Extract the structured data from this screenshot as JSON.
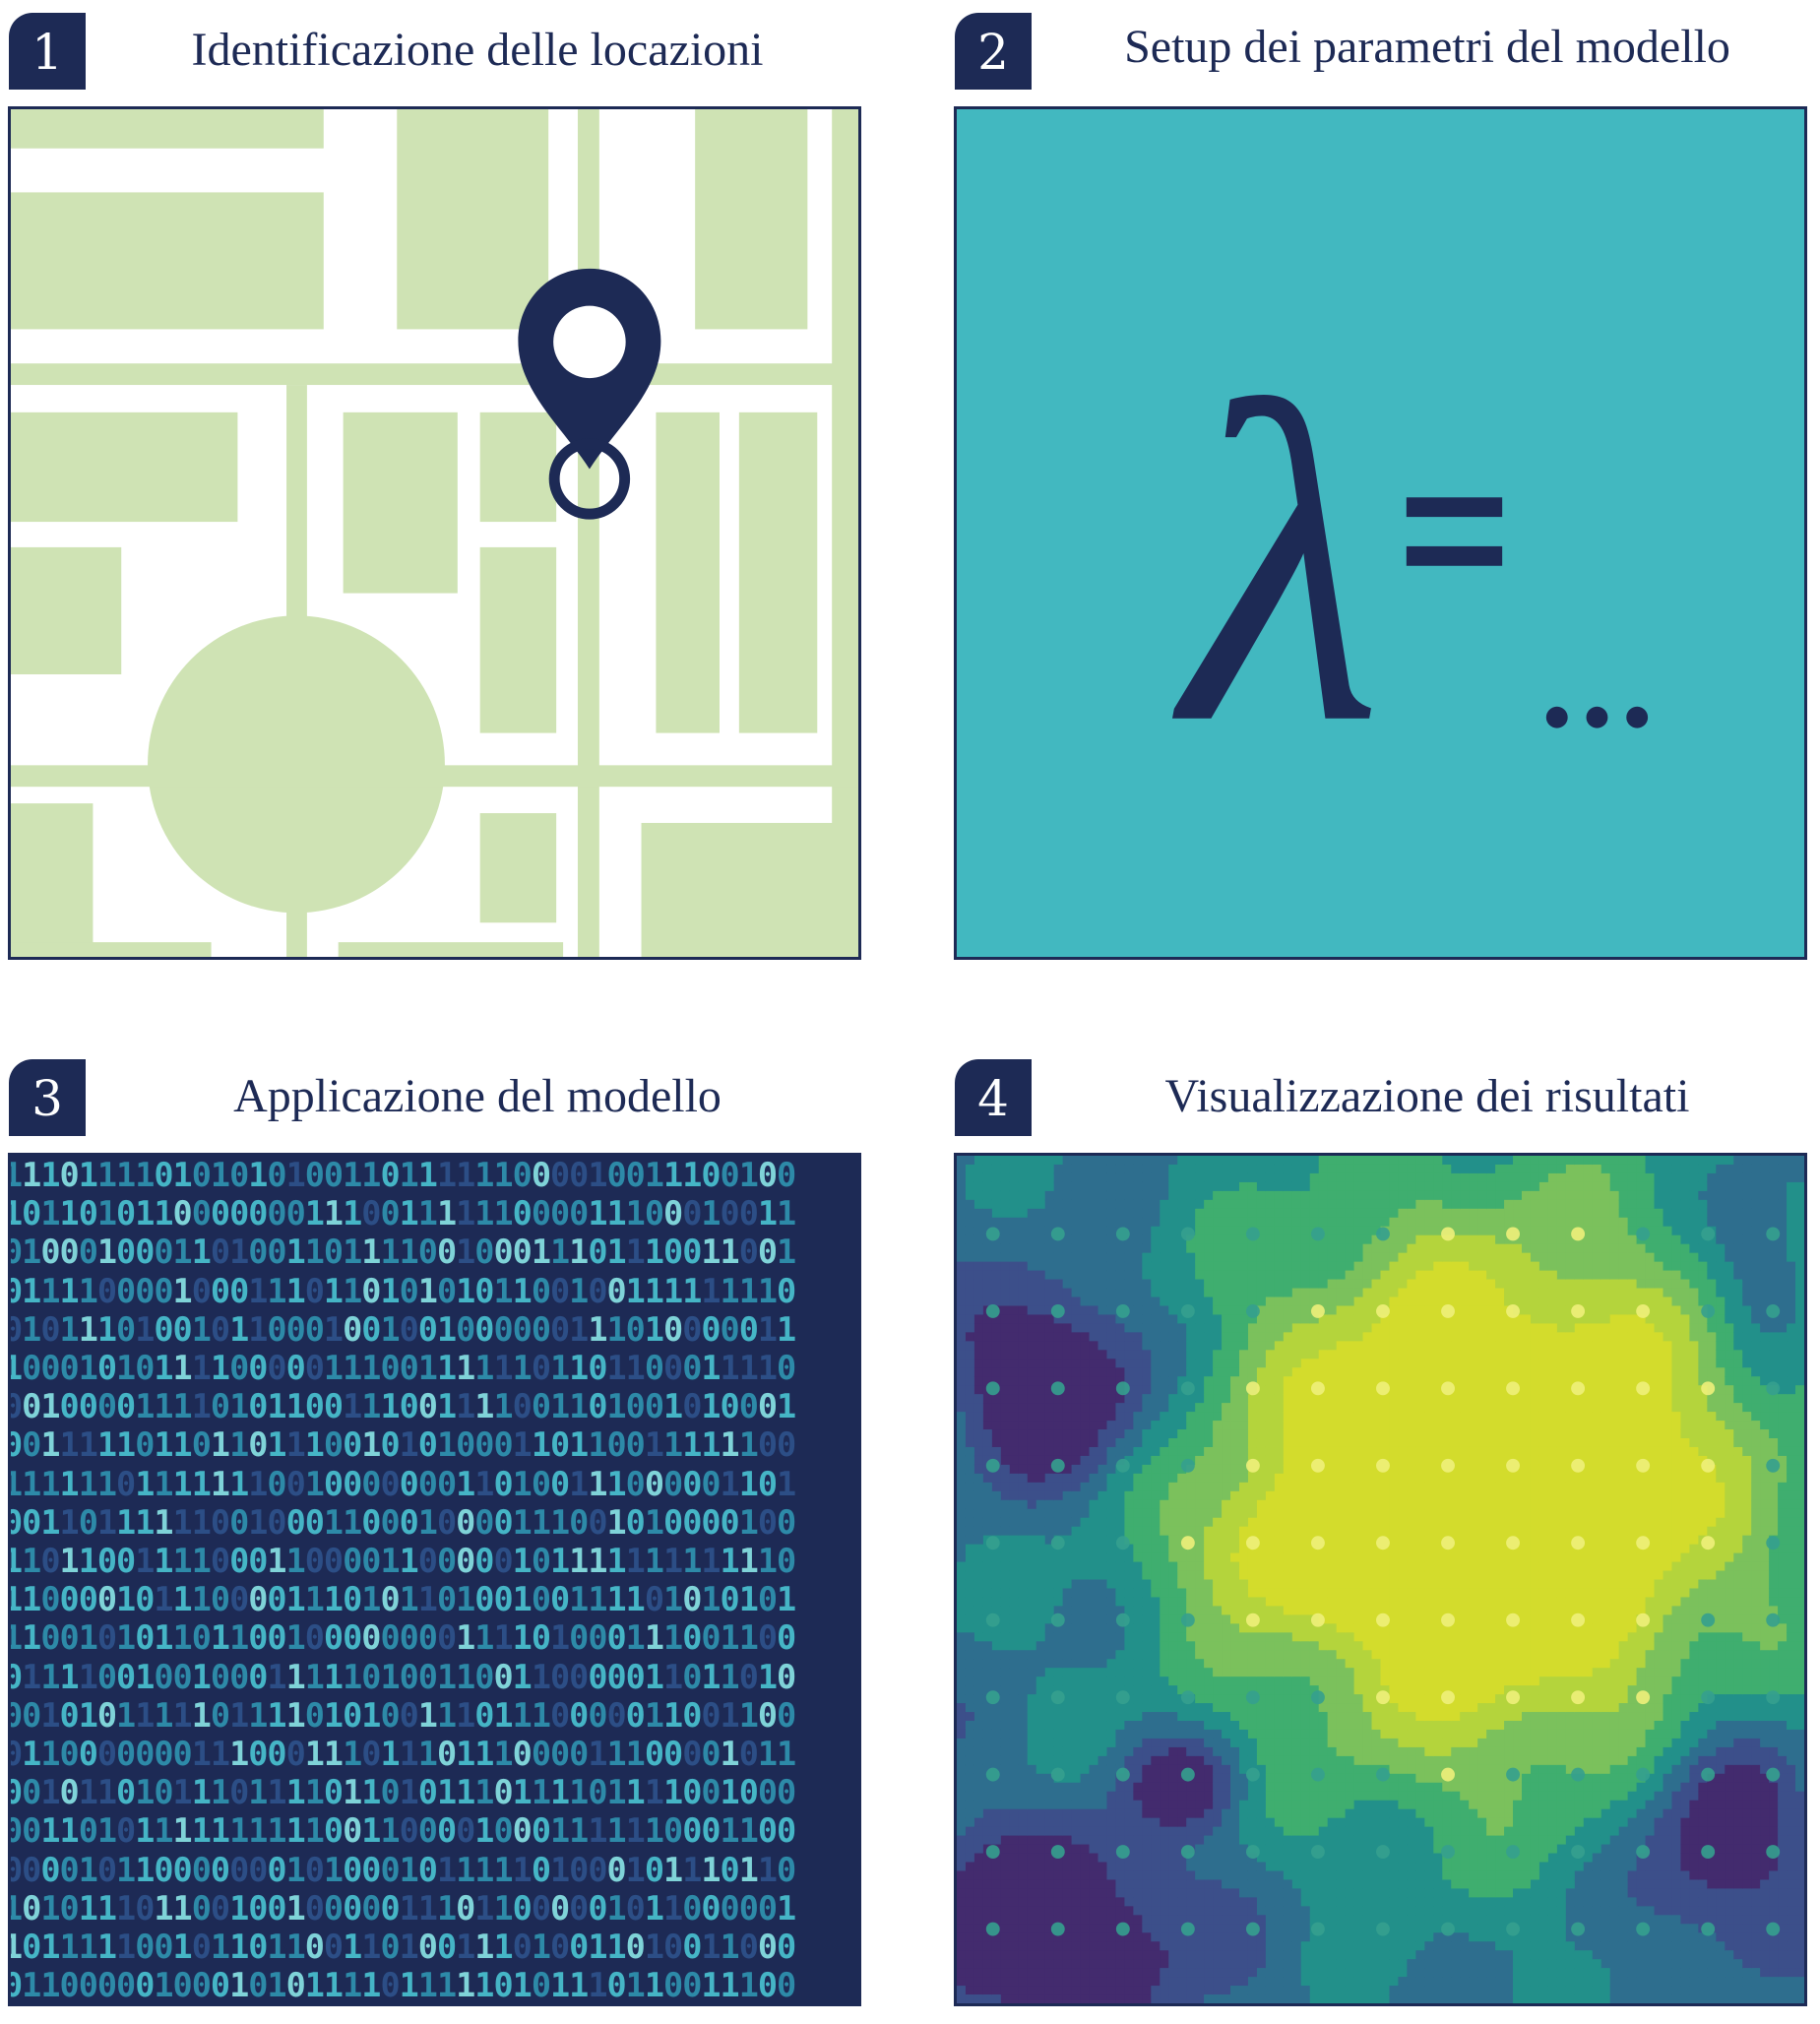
{
  "panels": [
    {
      "number": "1",
      "title": "Identificazione delle locazioni",
      "icon": "map-pin-icon"
    },
    {
      "number": "2",
      "title": "Setup dei parametri del modello",
      "formula": {
        "symbol": "λ",
        "equals": "=",
        "value": "..."
      }
    },
    {
      "number": "3",
      "title": "Applicazione del modello"
    },
    {
      "number": "4",
      "title": "Visualizzazione dei risultati"
    }
  ],
  "colors": {
    "navy": "#1d2a55",
    "map_block": "#cfe3b4",
    "teal": "#42b8c0",
    "binary_bg": "#1d2a55",
    "binary_digits": [
      "#2c4e86",
      "#2d8aa8",
      "#45b5c6",
      "#7fd3d8"
    ],
    "viridis": [
      "#432b6e",
      "#3c4f8a",
      "#2e6e8e",
      "#22908a",
      "#3fae6f",
      "#7bc15c",
      "#b4d43c",
      "#d3dc2c"
    ]
  }
}
